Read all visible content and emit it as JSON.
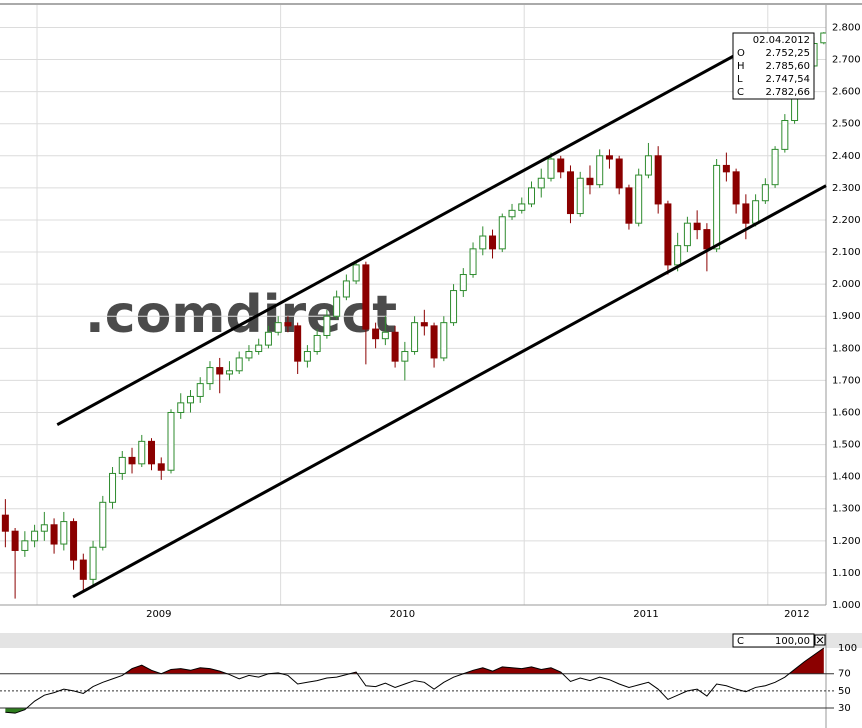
{
  "chart_data": [
    {
      "type": "candlestick",
      "watermark": ".comdirect",
      "x": [
        2008.87,
        2008.91,
        2008.95,
        2008.99,
        2009.03,
        2009.07,
        2009.11,
        2009.15,
        2009.19,
        2009.23,
        2009.27,
        2009.31,
        2009.35,
        2009.39,
        2009.43,
        2009.47,
        2009.51,
        2009.55,
        2009.59,
        2009.63,
        2009.67,
        2009.71,
        2009.75,
        2009.79,
        2009.83,
        2009.87,
        2009.91,
        2009.95,
        2009.99,
        2010.03,
        2010.07,
        2010.11,
        2010.15,
        2010.19,
        2010.23,
        2010.27,
        2010.31,
        2010.35,
        2010.39,
        2010.43,
        2010.47,
        2010.51,
        2010.55,
        2010.59,
        2010.63,
        2010.67,
        2010.71,
        2010.75,
        2010.79,
        2010.83,
        2010.87,
        2010.91,
        2010.95,
        2010.99,
        2011.03,
        2011.07,
        2011.11,
        2011.15,
        2011.19,
        2011.23,
        2011.27,
        2011.31,
        2011.35,
        2011.39,
        2011.43,
        2011.47,
        2011.51,
        2011.55,
        2011.59,
        2011.63,
        2011.67,
        2011.71,
        2011.75,
        2011.79,
        2011.83,
        2011.87,
        2011.91,
        2011.95,
        2011.99,
        2012.03,
        2012.07,
        2012.11,
        2012.15,
        2012.19,
        2012.23
      ],
      "open": [
        1280,
        1230,
        1170,
        1200,
        1230,
        1250,
        1190,
        1260,
        1140,
        1080,
        1180,
        1320,
        1410,
        1460,
        1440,
        1510,
        1440,
        1420,
        1600,
        1630,
        1650,
        1690,
        1740,
        1720,
        1730,
        1770,
        1790,
        1810,
        1850,
        1880,
        1870,
        1760,
        1790,
        1840,
        1900,
        1960,
        2010,
        2060,
        1860,
        1830,
        1850,
        1760,
        1790,
        1880,
        1870,
        1770,
        1880,
        1980,
        2030,
        2110,
        2150,
        2110,
        2210,
        2230,
        2250,
        2300,
        2330,
        2390,
        2350,
        2220,
        2330,
        2310,
        2400,
        2390,
        2300,
        2190,
        2340,
        2400,
        2250,
        2060,
        2120,
        2190,
        2170,
        2110,
        2370,
        2350,
        2250,
        2190,
        2260,
        2310,
        2420,
        2510,
        2600,
        2680,
        2752.25
      ],
      "high": [
        1330,
        1240,
        1230,
        1250,
        1290,
        1270,
        1290,
        1270,
        1160,
        1200,
        1340,
        1430,
        1480,
        1490,
        1530,
        1520,
        1460,
        1610,
        1660,
        1670,
        1710,
        1760,
        1770,
        1760,
        1790,
        1810,
        1830,
        1870,
        1900,
        1900,
        1880,
        1810,
        1860,
        1920,
        1980,
        2030,
        2070,
        2070,
        1880,
        1900,
        1870,
        1820,
        1900,
        1920,
        1880,
        1900,
        2000,
        2050,
        2130,
        2180,
        2170,
        2220,
        2250,
        2270,
        2320,
        2360,
        2410,
        2400,
        2370,
        2350,
        2370,
        2420,
        2420,
        2400,
        2310,
        2360,
        2440,
        2430,
        2260,
        2160,
        2210,
        2230,
        2190,
        2390,
        2410,
        2360,
        2280,
        2280,
        2330,
        2430,
        2530,
        2620,
        2700,
        2770,
        2785.6
      ],
      "low": [
        1180,
        1020,
        1150,
        1180,
        1200,
        1160,
        1170,
        1110,
        1040,
        1060,
        1170,
        1300,
        1390,
        1410,
        1430,
        1420,
        1390,
        1410,
        1580,
        1600,
        1630,
        1670,
        1660,
        1700,
        1720,
        1760,
        1780,
        1800,
        1840,
        1850,
        1720,
        1740,
        1780,
        1830,
        1890,
        1950,
        2000,
        1750,
        1800,
        1810,
        1740,
        1700,
        1780,
        1840,
        1740,
        1760,
        1870,
        1960,
        2020,
        2090,
        2080,
        2100,
        2200,
        2220,
        2240,
        2270,
        2320,
        2330,
        2190,
        2210,
        2280,
        2300,
        2360,
        2280,
        2170,
        2180,
        2330,
        2220,
        2030,
        2040,
        2100,
        2140,
        2040,
        2100,
        2320,
        2220,
        2140,
        2180,
        2250,
        2300,
        2410,
        2500,
        2590,
        2670,
        2747.54
      ],
      "close": [
        1230,
        1170,
        1200,
        1230,
        1250,
        1190,
        1260,
        1140,
        1080,
        1180,
        1320,
        1410,
        1460,
        1440,
        1510,
        1440,
        1420,
        1600,
        1630,
        1650,
        1690,
        1740,
        1720,
        1730,
        1770,
        1790,
        1810,
        1850,
        1880,
        1870,
        1760,
        1790,
        1840,
        1900,
        1960,
        2010,
        2060,
        1860,
        1830,
        1850,
        1760,
        1790,
        1880,
        1870,
        1770,
        1880,
        1980,
        2030,
        2110,
        2150,
        2110,
        2210,
        2230,
        2250,
        2300,
        2330,
        2390,
        2350,
        2220,
        2330,
        2310,
        2400,
        2390,
        2300,
        2190,
        2340,
        2400,
        2250,
        2060,
        2120,
        2190,
        2170,
        2110,
        2370,
        2350,
        2250,
        2190,
        2260,
        2310,
        2420,
        2510,
        2600,
        2680,
        2750,
        2782.66
      ],
      "up_color": "#2e8b2e",
      "down_color": "#8b0000",
      "xlim": [
        2008.848,
        2012.239
      ],
      "xticks": [
        2009,
        2010,
        2011,
        2012
      ],
      "ylim": [
        1000,
        2870
      ],
      "yticks": [
        {
          "value": 1000,
          "label": "1.000"
        },
        {
          "value": 1100,
          "label": "1.100"
        },
        {
          "value": 1200,
          "label": "1.200"
        },
        {
          "value": 1300,
          "label": "1.300"
        },
        {
          "value": 1400,
          "label": "1.400"
        },
        {
          "value": 1500,
          "label": "1.500"
        },
        {
          "value": 1600,
          "label": "1.600"
        },
        {
          "value": 1700,
          "label": "1.700"
        },
        {
          "value": 1800,
          "label": "1.800"
        },
        {
          "value": 1900,
          "label": "1.900"
        },
        {
          "value": 2000,
          "label": "2.000"
        },
        {
          "value": 2100,
          "label": "2.100"
        },
        {
          "value": 2200,
          "label": "2.200"
        },
        {
          "value": 2300,
          "label": "2.300"
        },
        {
          "value": 2400,
          "label": "2.400"
        },
        {
          "value": 2500,
          "label": "2.500"
        },
        {
          "value": 2600,
          "label": "2.600"
        },
        {
          "value": 2700,
          "label": "2.700"
        },
        {
          "value": 2800,
          "label": "2.800"
        }
      ],
      "grid": true,
      "trendlines": [
        {
          "x": [
            2009.083,
            2012.0
          ],
          "y": [
            1562,
            2769
          ],
          "color": "#000000"
        },
        {
          "x": [
            2009.148,
            2012.239
          ],
          "y": [
            1025,
            2307
          ],
          "color": "#000000"
        }
      ],
      "ohlc_box": {
        "date": "02.04.2012",
        "labels": [
          "O",
          "H",
          "L",
          "C"
        ],
        "value_labels": [
          "2.752,25",
          "2.785,60",
          "2.747,54",
          "2.782,66"
        ]
      }
    },
    {
      "type": "line",
      "x": [
        2008.87,
        2008.91,
        2008.95,
        2008.99,
        2009.03,
        2009.07,
        2009.11,
        2009.15,
        2009.19,
        2009.23,
        2009.27,
        2009.31,
        2009.35,
        2009.39,
        2009.43,
        2009.47,
        2009.51,
        2009.55,
        2009.59,
        2009.63,
        2009.67,
        2009.71,
        2009.75,
        2009.79,
        2009.83,
        2009.87,
        2009.91,
        2009.95,
        2009.99,
        2010.03,
        2010.07,
        2010.11,
        2010.15,
        2010.19,
        2010.23,
        2010.27,
        2010.31,
        2010.35,
        2010.39,
        2010.43,
        2010.47,
        2010.51,
        2010.55,
        2010.59,
        2010.63,
        2010.67,
        2010.71,
        2010.75,
        2010.79,
        2010.83,
        2010.87,
        2010.91,
        2010.95,
        2010.99,
        2011.03,
        2011.07,
        2011.11,
        2011.15,
        2011.19,
        2011.23,
        2011.27,
        2011.31,
        2011.35,
        2011.39,
        2011.43,
        2011.47,
        2011.51,
        2011.55,
        2011.59,
        2011.63,
        2011.67,
        2011.71,
        2011.75,
        2011.79,
        2011.83,
        2011.87,
        2011.91,
        2011.95,
        2011.99,
        2012.03,
        2012.07,
        2012.11,
        2012.15,
        2012.19,
        2012.23
      ],
      "values": [
        25,
        24,
        28,
        38,
        45,
        48,
        52,
        50,
        47,
        55,
        60,
        64,
        68,
        76,
        80,
        74,
        70,
        75,
        76,
        74,
        77,
        76,
        73,
        69,
        64,
        68,
        66,
        70,
        71,
        68,
        58,
        60,
        62,
        65,
        66,
        69,
        72,
        56,
        55,
        59,
        54,
        58,
        62,
        60,
        52,
        60,
        66,
        70,
        74,
        77,
        73,
        78,
        77,
        76,
        78,
        75,
        77,
        72,
        61,
        65,
        62,
        66,
        63,
        58,
        54,
        57,
        60,
        52,
        40,
        45,
        50,
        52,
        44,
        58,
        56,
        52,
        49,
        54,
        56,
        60,
        66,
        75,
        84,
        92,
        100
      ],
      "color": "#000000",
      "xlim": [
        2008.848,
        2012.239
      ],
      "ylim": [
        6.7,
        114
      ],
      "yticks": [
        100,
        70,
        50,
        30
      ],
      "levels": [
        {
          "value": 70,
          "style": "solid",
          "fill": "#8b0000",
          "side": "above"
        },
        {
          "value": 50,
          "style": "dashed"
        },
        {
          "value": 30,
          "style": "solid",
          "fill": "#2e7d1e",
          "side": "below"
        }
      ],
      "value_box": {
        "label": "C",
        "value_label": "100,00"
      }
    }
  ]
}
